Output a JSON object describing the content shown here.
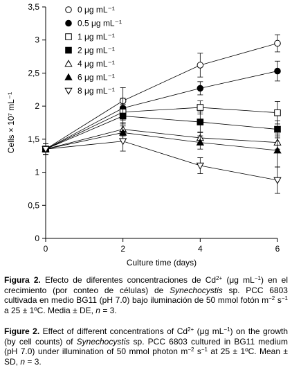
{
  "chart_data": {
    "type": "line",
    "xlabel": "Culture time (days)",
    "ylabel": "Cells × 10⁷ mL⁻¹",
    "xlim": [
      0,
      6
    ],
    "ylim": [
      0,
      3.5
    ],
    "xticks": [
      "0",
      "2",
      "4",
      "6"
    ],
    "yticks": [
      "0",
      "0,5",
      "1",
      "1,5",
      "2",
      "2,5",
      "3",
      "3,5"
    ],
    "x": [
      0,
      2,
      4,
      6
    ],
    "grid": false,
    "legend_position": "top-left",
    "series": [
      {
        "name": "0 μg mL⁻¹",
        "marker": "circle-open",
        "values": [
          1.35,
          2.08,
          2.62,
          2.95
        ],
        "errors": [
          0.08,
          0.2,
          0.18,
          0.13
        ]
      },
      {
        "name": "0.5 μg mL⁻¹",
        "marker": "circle-filled",
        "values": [
          1.35,
          1.97,
          2.27,
          2.53
        ],
        "errors": [
          0.08,
          0.15,
          0.1,
          0.15
        ]
      },
      {
        "name": "1 μg mL⁻¹",
        "marker": "square-open",
        "values": [
          1.35,
          1.91,
          1.98,
          1.9
        ],
        "errors": [
          0.08,
          0.12,
          0.1,
          0.17
        ]
      },
      {
        "name": "2 μg mL⁻¹",
        "marker": "square-filled",
        "values": [
          1.35,
          1.85,
          1.76,
          1.65
        ],
        "errors": [
          0.08,
          0.12,
          0.15,
          0.13
        ]
      },
      {
        "name": "4 μg mL⁻¹",
        "marker": "triangle-open",
        "values": [
          1.35,
          1.65,
          1.52,
          1.45
        ],
        "errors": [
          0.08,
          0.1,
          0.08,
          0.1
        ]
      },
      {
        "name": "6 μg mL⁻¹",
        "marker": "triangle-filled",
        "values": [
          1.35,
          1.6,
          1.45,
          1.33
        ],
        "errors": [
          0.08,
          0.1,
          0.1,
          0.25
        ]
      },
      {
        "name": "8 μg mL⁻¹",
        "marker": "triangle-down-open",
        "values": [
          1.35,
          1.47,
          1.1,
          0.88
        ],
        "errors": [
          0.08,
          0.15,
          0.12,
          0.2
        ]
      }
    ]
  },
  "caption_es": {
    "label": "Figura 2.",
    "text1": "Efecto de diferentes concentraciones de Cd",
    "sup1": "2+",
    "text2": "(μg mL",
    "sup2": "−1",
    "text3": ") en el crecimiento (por conteo de células) de",
    "species": "Synechocystis",
    "text4": "sp. PCC 6803 cultivada en medio BG11 (pH 7.0) bajo iluminación de 50 mmol fotón m",
    "sup3": "−2",
    "text5": "s",
    "sup4": "−1",
    "text6": "a 25 ± 1ºC. Media ± DE,",
    "n": "n",
    "text7": "= 3."
  },
  "caption_en": {
    "label": "Figure 2.",
    "text1": "Effect of different concentrations of Cd",
    "sup1": "2+",
    "text2": "(μg mL",
    "sup2": "−1",
    "text3": ") on the growth (by cell counts) of",
    "species": "Synechocystis",
    "text4": "sp. PCC 6803 cultured in BG11 medium (pH 7.0) under illumination of 50 mmol photon m",
    "sup3": "−2",
    "text5": "s",
    "sup4": "−1",
    "text6": "at 25 ± 1ºC. Mean ± SD,",
    "n": "n",
    "text7": "= 3."
  }
}
